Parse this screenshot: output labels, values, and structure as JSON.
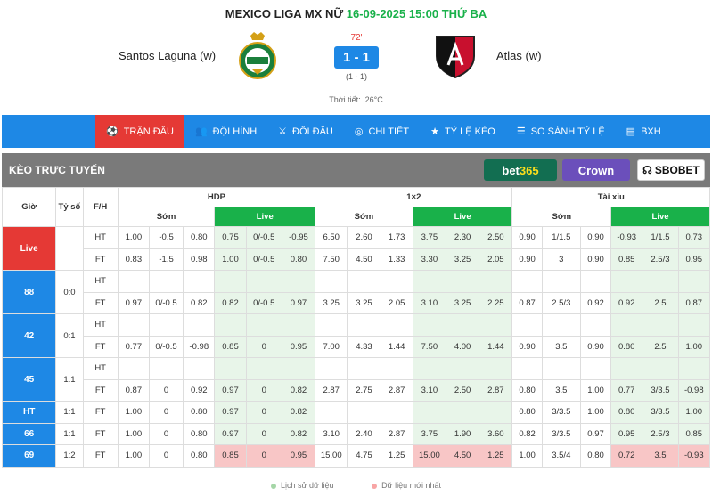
{
  "match": {
    "league": "MEXICO LIGA MX NỮ",
    "datetime": "16-09-2025 15:00 THỨ BA",
    "home": "Santos Laguna (w)",
    "away": "Atlas (w)",
    "minute": "72'",
    "score": "1 - 1",
    "halftime": "(1 - 1)",
    "weather": "Thời tiết: ,26°C"
  },
  "nav": [
    {
      "label": "TRẬN ĐẤU",
      "icon": "soccer-ball-icon",
      "glyph": "⚽"
    },
    {
      "label": "ĐỘI HÌNH",
      "icon": "team-icon",
      "glyph": "👥"
    },
    {
      "label": "ĐỐI ĐẦU",
      "icon": "versus-icon",
      "glyph": "⚔"
    },
    {
      "label": "CHI TIẾT",
      "icon": "detail-icon",
      "glyph": "◎"
    },
    {
      "label": "TỶ LỆ KÈO",
      "icon": "star-icon",
      "glyph": "★"
    },
    {
      "label": "SO SÁNH TỶ LỆ",
      "icon": "list-icon",
      "glyph": "☰"
    },
    {
      "label": "BXH",
      "icon": "ranking-icon",
      "glyph": "▤"
    }
  ],
  "odds": {
    "section_label": "KÈO TRỰC TUYẾN",
    "bookmakers": {
      "bet365_a": "bet",
      "bet365_b": "365",
      "crown": "Crown",
      "sbobet": "SBOBET"
    },
    "headers": {
      "gio": "Giờ",
      "tyso": "Tỷ số",
      "fh": "F/H",
      "hdp": "HDP",
      "x12": "1×2",
      "taixiu": "Tài xỉu",
      "som": "Sớm",
      "live": "Live"
    },
    "rows": [
      {
        "min": "Live",
        "score": "",
        "lines": [
          {
            "fh": "HT",
            "vals": [
              "1.00",
              "-0.5",
              "0.80",
              "0.75",
              "0/-0.5",
              "-0.95",
              "6.50",
              "2.60",
              "1.73",
              "3.75",
              "2.30",
              "2.50",
              "0.90",
              "1/1.5",
              "0.90",
              "-0.93",
              "1/1.5",
              "0.73"
            ]
          },
          {
            "fh": "FT",
            "vals": [
              "0.83",
              "-1.5",
              "0.98",
              "1.00",
              "0/-0.5",
              "0.80",
              "7.50",
              "4.50",
              "1.33",
              "3.30",
              "3.25",
              "2.05",
              "0.90",
              "3",
              "0.90",
              "0.85",
              "2.5/3",
              "0.95"
            ]
          }
        ]
      },
      {
        "min": "88",
        "score": "0:0",
        "lines": [
          {
            "fh": "HT",
            "vals": [
              "",
              "",
              "",
              "",
              "",
              "",
              "",
              "",
              "",
              "",
              "",
              "",
              "",
              "",
              "",
              "",
              "",
              ""
            ]
          },
          {
            "fh": "FT",
            "vals": [
              "0.97",
              "0/-0.5",
              "0.82",
              "0.82",
              "0/-0.5",
              "0.97",
              "3.25",
              "3.25",
              "2.05",
              "3.10",
              "3.25",
              "2.25",
              "0.87",
              "2.5/3",
              "0.92",
              "0.92",
              "2.5",
              "0.87"
            ]
          }
        ]
      },
      {
        "min": "42",
        "score": "0:1",
        "lines": [
          {
            "fh": "HT",
            "vals": [
              "",
              "",
              "",
              "",
              "",
              "",
              "",
              "",
              "",
              "",
              "",
              "",
              "",
              "",
              "",
              "",
              "",
              ""
            ]
          },
          {
            "fh": "FT",
            "vals": [
              "0.77",
              "0/-0.5",
              "-0.98",
              "0.85",
              "0",
              "0.95",
              "7.00",
              "4.33",
              "1.44",
              "7.50",
              "4.00",
              "1.44",
              "0.90",
              "3.5",
              "0.90",
              "0.80",
              "2.5",
              "1.00"
            ]
          }
        ]
      },
      {
        "min": "45",
        "score": "1:1",
        "lines": [
          {
            "fh": "HT",
            "vals": [
              "",
              "",
              "",
              "",
              "",
              "",
              "",
              "",
              "",
              "",
              "",
              "",
              "",
              "",
              "",
              "",
              "",
              ""
            ]
          },
          {
            "fh": "FT",
            "vals": [
              "0.87",
              "0",
              "0.92",
              "0.97",
              "0",
              "0.82",
              "2.87",
              "2.75",
              "2.87",
              "3.10",
              "2.50",
              "2.87",
              "0.80",
              "3.5",
              "1.00",
              "0.77",
              "3/3.5",
              "-0.98"
            ]
          }
        ]
      },
      {
        "min": "HT",
        "score": "1:1",
        "lines": [
          {
            "fh": "FT",
            "vals": [
              "1.00",
              "0",
              "0.80",
              "0.97",
              "0",
              "0.82",
              "",
              "",
              "",
              "",
              "",
              "",
              "0.80",
              "3/3.5",
              "1.00",
              "0.80",
              "3/3.5",
              "1.00"
            ]
          }
        ]
      },
      {
        "min": "66",
        "score": "1:1",
        "lines": [
          {
            "fh": "FT",
            "vals": [
              "1.00",
              "0",
              "0.80",
              "0.97",
              "0",
              "0.82",
              "3.10",
              "2.40",
              "2.87",
              "3.75",
              "1.90",
              "3.60",
              "0.82",
              "3/3.5",
              "0.97",
              "0.95",
              "2.5/3",
              "0.85"
            ]
          }
        ]
      },
      {
        "min": "69",
        "score": "1:2",
        "red": true,
        "lines": [
          {
            "fh": "FT",
            "vals": [
              "1.00",
              "0",
              "0.80",
              "0.85",
              "0",
              "0.95",
              "15.00",
              "4.75",
              "1.25",
              "15.00",
              "4.50",
              "1.25",
              "1.00",
              "3.5/4",
              "0.80",
              "0.72",
              "3.5",
              "-0.93"
            ]
          }
        ]
      }
    ]
  },
  "legend": {
    "history": "Lịch sử dữ liệu",
    "newest": "Dữ liệu mới nhất",
    "history_color": "#a5d6a7",
    "newest_color": "#f8a5a5"
  },
  "colors": {
    "accent": "#1e88e5",
    "active_tab": "#e53935",
    "live_green": "#19b14a"
  }
}
